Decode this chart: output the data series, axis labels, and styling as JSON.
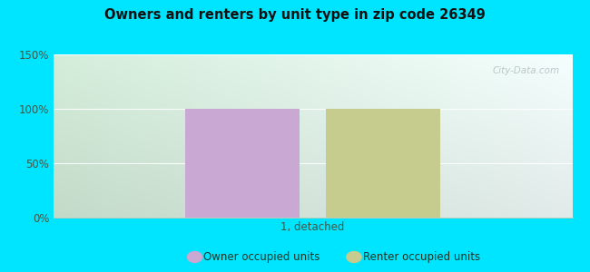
{
  "title": "Owners and renters by unit type in zip code 26349",
  "categories": [
    "1, detached"
  ],
  "owner_values": [
    100
  ],
  "renter_values": [
    100
  ],
  "owner_color": "#c9a8d4",
  "renter_color": "#c5cc8e",
  "ylim": [
    0,
    150
  ],
  "yticks": [
    0,
    50,
    100,
    150
  ],
  "ytick_labels": [
    "0%",
    "50%",
    "100%",
    "150%"
  ],
  "bar_width": 0.22,
  "bar_gap": 0.05,
  "figure_bg": "#00e5ff",
  "plot_bg_left": "#d4edda",
  "plot_bg_right": "#f5fffe",
  "legend_owner": "Owner occupied units",
  "legend_renter": "Renter occupied units",
  "watermark": "City-Data.com",
  "xlim": [
    -0.5,
    0.5
  ]
}
